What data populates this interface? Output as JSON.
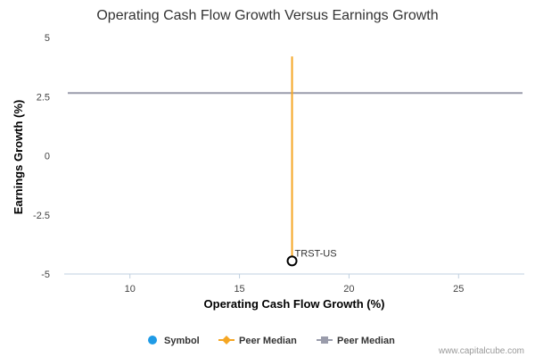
{
  "chart_data": {
    "type": "scatter",
    "title": "Operating Cash Flow Growth Versus Earnings Growth",
    "xlabel": "Operating Cash Flow Growth (%)",
    "ylabel": "Earnings Growth (%)",
    "xlim": [
      7,
      28
    ],
    "ylim": [
      -5,
      5
    ],
    "x_ticks": [
      10,
      15,
      20,
      25
    ],
    "y_ticks": [
      5,
      2.5,
      0,
      -2.5,
      -5
    ],
    "x_tick_labels": [
      "10",
      "15",
      "20",
      "25"
    ],
    "y_tick_labels": [
      "5",
      "2.5",
      "0",
      "-2.5",
      "-5"
    ],
    "grid": false,
    "symbol": {
      "label": "TRST-US",
      "x": 17.4,
      "y": -4.45
    },
    "peer_median_x": {
      "x": 17.4,
      "y_range": [
        -4.45,
        4.2
      ]
    },
    "peer_median_y": {
      "y": 2.65
    },
    "legend": {
      "position": "bottom",
      "items": [
        {
          "label": "Symbol",
          "color": "#1f9be6",
          "marker": "circle"
        },
        {
          "label": "Peer Median",
          "color": "#f5a623",
          "marker": "diamond-line"
        },
        {
          "label": "Peer Median",
          "color": "#9a9cab",
          "marker": "square-line"
        }
      ]
    },
    "colors": {
      "peer_median_x_line": "#f5a623",
      "peer_median_y_line": "#9a9cab",
      "symbol_marker_stroke": "#000000",
      "axis_line": "#c0d0e0"
    }
  },
  "credit": "www.capitalcube.com"
}
